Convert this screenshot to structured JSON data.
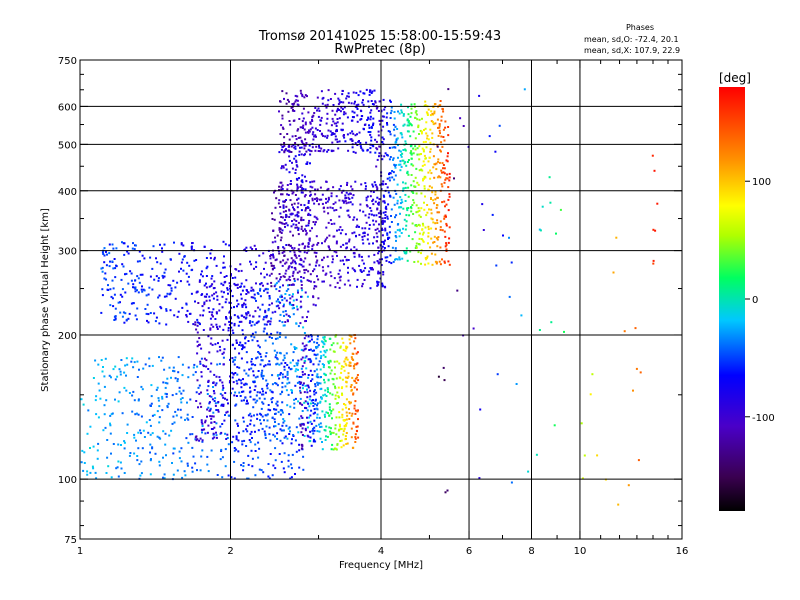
{
  "chart_data": {
    "type": "scatter",
    "title": "Tromsø 20141025 15:58:00-15:59:43",
    "subtitle": "RwPretec (8p)",
    "xlabel": "Frequency [MHz]",
    "ylabel": "Stationary phase Virtual Height [km]",
    "x_scale": "log",
    "y_scale": "log",
    "xlim": [
      1,
      16
    ],
    "ylim": [
      75,
      750
    ],
    "x_ticks": [
      1,
      2,
      4,
      6,
      8,
      10,
      16
    ],
    "y_ticks": [
      75,
      100,
      200,
      300,
      400,
      500,
      600,
      750
    ],
    "x_gridlines": [
      2,
      4,
      6,
      8,
      10
    ],
    "y_gridlines": [
      100,
      200,
      300,
      400,
      500,
      600
    ],
    "grid": true,
    "phases_header": "Phases",
    "phases_stats": [
      "mean, sd,O: -72.4, 20.1",
      "mean, sd,X: 107.9, 22.9"
    ],
    "colorbar": {
      "label": "[deg]",
      "range": [
        -180,
        180
      ],
      "ticks": [
        100,
        0,
        -100
      ],
      "colormap": "rainbow (black at -180, violet, blue, cyan, green, yellow, orange, red at 180)"
    },
    "clusters": [
      {
        "desc": "lower trace",
        "x": [
          1.0,
          2.8
        ],
        "y": [
          100,
          180
        ],
        "phase": [
          -20,
          -60
        ],
        "points": 520,
        "seed": 1
      },
      {
        "desc": "lower cloud",
        "x": [
          1.7,
          2.9
        ],
        "y": [
          120,
          260
        ],
        "phase": [
          -105,
          -15
        ],
        "points": 560,
        "seed": 2
      },
      {
        "desc": "lower cusp",
        "x": [
          2.75,
          3.6
        ],
        "y": [
          115,
          200
        ],
        "phase": [
          -120,
          150
        ],
        "points": 420,
        "seed": 3
      },
      {
        "desc": "oblique trace",
        "x": [
          1.1,
          3.0
        ],
        "y": [
          210,
          315
        ],
        "phase": [
          -50,
          -100
        ],
        "points": 460,
        "seed": 4
      },
      {
        "desc": "upper band",
        "x": [
          2.4,
          4.1
        ],
        "y": [
          250,
          420
        ],
        "phase": [
          -120,
          -80
        ],
        "points": 520,
        "seed": 5
      },
      {
        "desc": "upper cusp",
        "x": [
          3.9,
          5.5
        ],
        "y": [
          280,
          620
        ],
        "phase": [
          -110,
          170
        ],
        "points": 620,
        "seed": 6
      },
      {
        "desc": "top trace",
        "x": [
          2.5,
          3.9
        ],
        "y": [
          480,
          650
        ],
        "phase": [
          -120,
          -70
        ],
        "points": 330,
        "seed": 7
      },
      {
        "desc": "spur",
        "x": [
          2.5,
          2.9
        ],
        "y": [
          330,
          500
        ],
        "phase": [
          -95,
          -75
        ],
        "points": 110,
        "seed": 8
      },
      {
        "desc": "sparse high freq",
        "x": [
          5.0,
          14.5
        ],
        "y": [
          85,
          680
        ],
        "phase": [
          -160,
          170
        ],
        "points": 70,
        "seed": 9
      }
    ]
  }
}
